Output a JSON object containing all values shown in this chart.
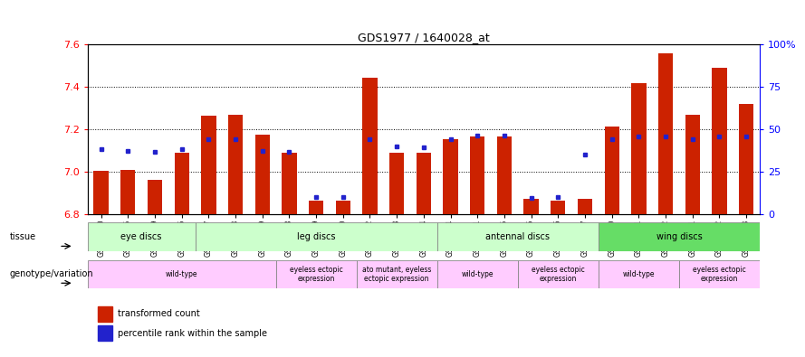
{
  "title": "GDS1977 / 1640028_at",
  "samples": [
    "GSM91570",
    "GSM91585",
    "GSM91609",
    "GSM91616",
    "GSM91617",
    "GSM91618",
    "GSM91619",
    "GSM91478",
    "GSM91479",
    "GSM91480",
    "GSM91472",
    "GSM91473",
    "GSM91474",
    "GSM91484",
    "GSM91491",
    "GSM91515",
    "GSM91475",
    "GSM91476",
    "GSM91477",
    "GSM91620",
    "GSM91621",
    "GSM91622",
    "GSM91481",
    "GSM91482",
    "GSM91483"
  ],
  "red_values": [
    7.005,
    7.008,
    6.963,
    7.09,
    7.265,
    7.27,
    7.175,
    7.09,
    6.865,
    6.862,
    7.445,
    7.09,
    7.09,
    7.155,
    7.165,
    7.165,
    6.87,
    6.865,
    6.87,
    7.215,
    7.42,
    7.56,
    7.27,
    7.49,
    7.32
  ],
  "blue_values": [
    7.105,
    7.1,
    7.095,
    7.105,
    7.155,
    7.155,
    7.1,
    7.095,
    6.88,
    6.88,
    7.155,
    7.12,
    7.115,
    7.155,
    7.17,
    7.17,
    6.875,
    6.88,
    7.08,
    7.155,
    7.165,
    7.165,
    7.155,
    7.165,
    7.165
  ],
  "ylim_left": [
    6.8,
    7.6
  ],
  "yticks_left": [
    6.8,
    7.0,
    7.2,
    7.4,
    7.6
  ],
  "yticks_right": [
    0,
    25,
    50,
    75,
    100
  ],
  "ytick_right_labels": [
    "0",
    "25",
    "50",
    "75",
    "100%"
  ],
  "bar_color": "#cc2200",
  "dot_color": "#2222cc",
  "bar_bottom": 6.8,
  "tissue_groups": [
    {
      "label": "eye discs",
      "start": 0,
      "end": 4,
      "color": "#ccffcc"
    },
    {
      "label": "leg discs",
      "start": 4,
      "end": 13,
      "color": "#ccffcc"
    },
    {
      "label": "antennal discs",
      "start": 13,
      "end": 19,
      "color": "#ccffcc"
    },
    {
      "label": "wing discs",
      "start": 19,
      "end": 25,
      "color": "#66dd66"
    }
  ],
  "genotype_groups": [
    {
      "label": "wild-type",
      "start": 0,
      "end": 7
    },
    {
      "label": "eyeless ectopic\nexpression",
      "start": 7,
      "end": 10
    },
    {
      "label": "ato mutant, eyeless\nectopic expression",
      "start": 10,
      "end": 13
    },
    {
      "label": "wild-type",
      "start": 13,
      "end": 16
    },
    {
      "label": "eyeless ectopic\nexpression",
      "start": 16,
      "end": 19
    },
    {
      "label": "wild-type",
      "start": 19,
      "end": 22
    },
    {
      "label": "eyeless ectopic\nexpression",
      "start": 22,
      "end": 25
    }
  ]
}
